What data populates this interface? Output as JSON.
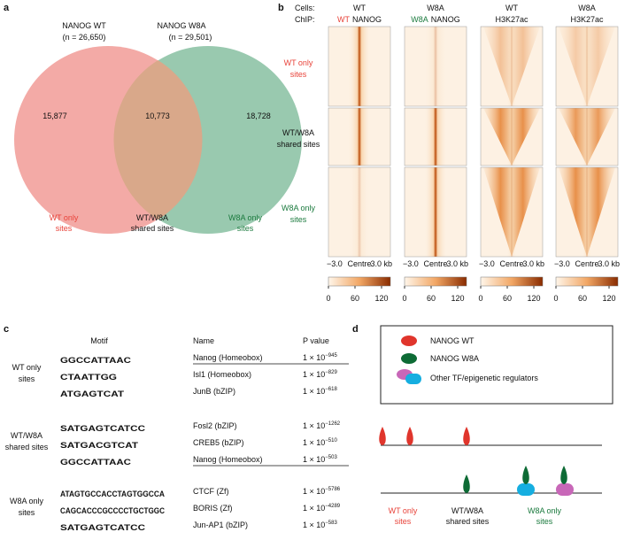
{
  "panel_labels": [
    "a",
    "b",
    "c",
    "d"
  ],
  "venn": {
    "sets": [
      {
        "name": "NANOG WT",
        "n": "(n = 26,650)",
        "count": "15,877"
      },
      {
        "name": "NANOG W8A",
        "n": "(n = 29,501)",
        "count": "18,728"
      }
    ],
    "overlap": "10,773",
    "labels": [
      [
        "WT only",
        "sites"
      ],
      [
        "WT/W8A",
        "shared sites"
      ],
      [
        "W8A only",
        "sites"
      ]
    ]
  },
  "heatmaps": {
    "cells_label": "Cells:",
    "chip_label": "ChIP:",
    "columns": [
      {
        "cells": "WT",
        "chip_prefix": "WT",
        "chip": "NANOG"
      },
      {
        "cells": "W8A",
        "chip_prefix": "W8A",
        "chip": "NANOG"
      },
      {
        "cells": "WT",
        "chip": "H3K27ac"
      },
      {
        "cells": "W8A",
        "chip": "H3K27ac"
      }
    ],
    "row_labels": [
      [
        "WT only",
        "sites"
      ],
      [
        "WT/W8A",
        "shared sites"
      ],
      [
        "W8A only",
        "sites"
      ]
    ],
    "axis": [
      "−3.0",
      "Centre",
      "3.0 kb"
    ],
    "colorbar_range": [
      0,
      140
    ],
    "colorbar_ticks": [
      0,
      60,
      120
    ]
  },
  "motifs": {
    "headers": [
      "Motif",
      "Name",
      "P value"
    ],
    "groups": [
      {
        "label": [
          "WT only",
          "sites"
        ],
        "rows": [
          {
            "logo": "GGCCATTAAC",
            "name": "Nanog (Homeobox)",
            "p_base": "1 × 10",
            "p_exp": "−945"
          },
          {
            "logo": "CTAATTGG",
            "name": "Isl1 (Homeobox)",
            "p_base": "1 × 10",
            "p_exp": "−829"
          },
          {
            "logo": "ATGAGTCAT",
            "name": "JunB (bZIP)",
            "p_base": "1 × 10",
            "p_exp": "−618"
          }
        ]
      },
      {
        "label": [
          "WT/W8A",
          "shared sites"
        ],
        "rows": [
          {
            "logo": "SATGAGTCATCC",
            "name": "Fosl2 (bZIP)",
            "p_base": "1 × 10",
            "p_exp": "−1262"
          },
          {
            "logo": "SATGACGTCAT",
            "name": "CREB5 (bZIP)",
            "p_base": "1 × 10",
            "p_exp": "−510"
          },
          {
            "logo": "GGCCATTAAC",
            "name": "Nanog (Homeobox)",
            "p_base": "1 × 10",
            "p_exp": "−503"
          }
        ]
      },
      {
        "label": [
          "W8A only",
          "sites"
        ],
        "rows": [
          {
            "logo": "ATAGTGCCACCTAGTGGCCA",
            "name": "CTCF (Zf)",
            "p_base": "1 × 10",
            "p_exp": "−5786"
          },
          {
            "logo": "CAGCACCCGCCCCTGCTGGC",
            "name": "BORIS (Zf)",
            "p_base": "1 × 10",
            "p_exp": "−4289"
          },
          {
            "logo": "SATGAGTCATCC",
            "name": "Jun-AP1 (bZIP)",
            "p_base": "1 × 10",
            "p_exp": "−583"
          }
        ]
      }
    ]
  },
  "model": {
    "legend": [
      "NANOG WT",
      "NANOG W8A",
      "Other TF/epigenetic regulators"
    ],
    "labels": [
      [
        "WT only",
        "sites"
      ],
      [
        "WT/W8A",
        "shared sites"
      ],
      [
        "W8A only",
        "sites"
      ]
    ]
  }
}
